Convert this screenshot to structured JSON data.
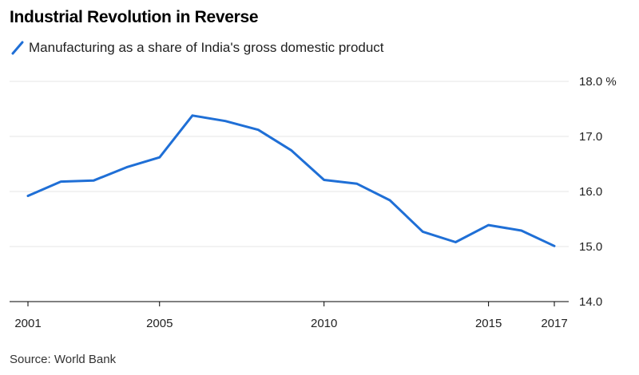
{
  "title": "Industrial Revolution in Reverse",
  "source": "Source: World Bank",
  "colors": {
    "series": "#1f6fd6",
    "grid": "#e6e6e6",
    "axis": "#000000"
  },
  "chart_data": {
    "type": "line",
    "title": "Industrial Revolution in Reverse",
    "xlabel": "",
    "ylabel": "",
    "x": [
      2001,
      2002,
      2003,
      2004,
      2005,
      2006,
      2007,
      2008,
      2009,
      2010,
      2011,
      2012,
      2013,
      2014,
      2015,
      2016,
      2017
    ],
    "series": [
      {
        "name": "Manufacturing as a share of India's gross domestic product",
        "values": [
          15.92,
          16.18,
          16.2,
          16.44,
          16.62,
          17.38,
          17.28,
          17.12,
          16.75,
          16.21,
          16.14,
          15.84,
          15.27,
          15.08,
          15.39,
          15.29,
          15.01
        ]
      }
    ],
    "xlim": [
      2001,
      2017
    ],
    "ylim": [
      14.0,
      18.0
    ],
    "x_ticks": [
      2001,
      2005,
      2010,
      2015,
      2017
    ],
    "x_tick_labels": [
      "2001",
      "2005",
      "2010",
      "2015",
      "2017"
    ],
    "y_ticks": [
      14.0,
      15.0,
      16.0,
      17.0,
      18.0
    ],
    "y_tick_labels": [
      "14.0",
      "15.0",
      "16.0",
      "17.0",
      "18.0 %"
    ],
    "grid": true,
    "legend_position": "top-left"
  }
}
